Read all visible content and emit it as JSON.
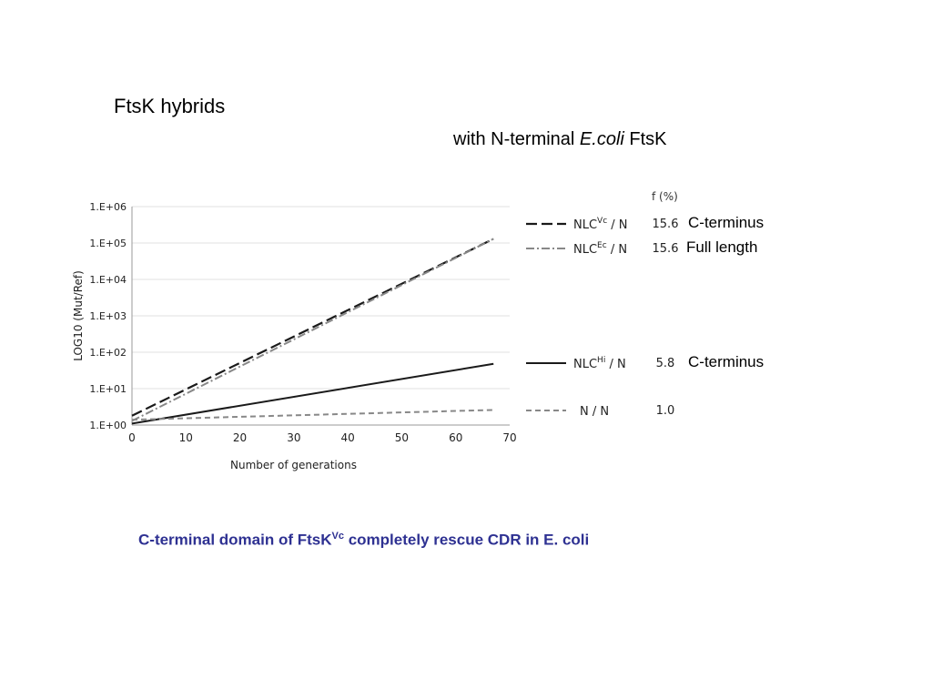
{
  "slide": {
    "title": "FtsK hybrids",
    "subtitle_prefix": "with N-terminal ",
    "subtitle_italic": "E.coli",
    "subtitle_suffix": " FtsK",
    "caption_prefix": "C-terminal domain of FtsK",
    "caption_sup": "Vc",
    "caption_suffix": " completely rescue CDR in E. coli"
  },
  "chart_data": {
    "type": "line",
    "title": "",
    "xlabel": "Number of generations",
    "ylabel": "LOG10 (Mut/Ref)",
    "xlim": [
      0,
      70
    ],
    "ylim": [
      0,
      6
    ],
    "y_scale": "log10",
    "x_ticks": [
      "0",
      "10",
      "20",
      "30",
      "40",
      "50",
      "60",
      "70"
    ],
    "y_ticks": [
      "1.E+00",
      "1.E+01",
      "1.E+02",
      "1.E+03",
      "1.E+04",
      "1.E+05",
      "1.E+06"
    ],
    "grid": true,
    "legend_header": "f (%)",
    "series": [
      {
        "name_base": "NLC",
        "name_sup": "Vc",
        "name_suffix": " / N",
        "f": "15.6",
        "annotation": "C-terminus",
        "color": "#1a1a1a",
        "style": "dashed",
        "x": [
          0,
          67
        ],
        "y": [
          1.8,
          130000
        ]
      },
      {
        "name_base": "NLC",
        "name_sup": "Ec",
        "name_suffix": " / N",
        "f": "15.6",
        "annotation": "Full length",
        "color": "#888888",
        "style": "dashdot",
        "x": [
          0,
          67
        ],
        "y": [
          1.3,
          130000
        ]
      },
      {
        "name_base": "NLC",
        "name_sup": "Hi",
        "name_suffix": " / N",
        "f": "5.8",
        "annotation": "C-terminus",
        "color": "#1a1a1a",
        "style": "solid",
        "x": [
          0,
          67
        ],
        "y": [
          1.1,
          48
        ]
      },
      {
        "name_base": "N / N",
        "name_sup": "",
        "name_suffix": "",
        "f": "1.0",
        "annotation": "",
        "color": "#888888",
        "style": "dashed-light",
        "x": [
          0,
          67
        ],
        "y": [
          1.4,
          2.6
        ]
      }
    ]
  }
}
